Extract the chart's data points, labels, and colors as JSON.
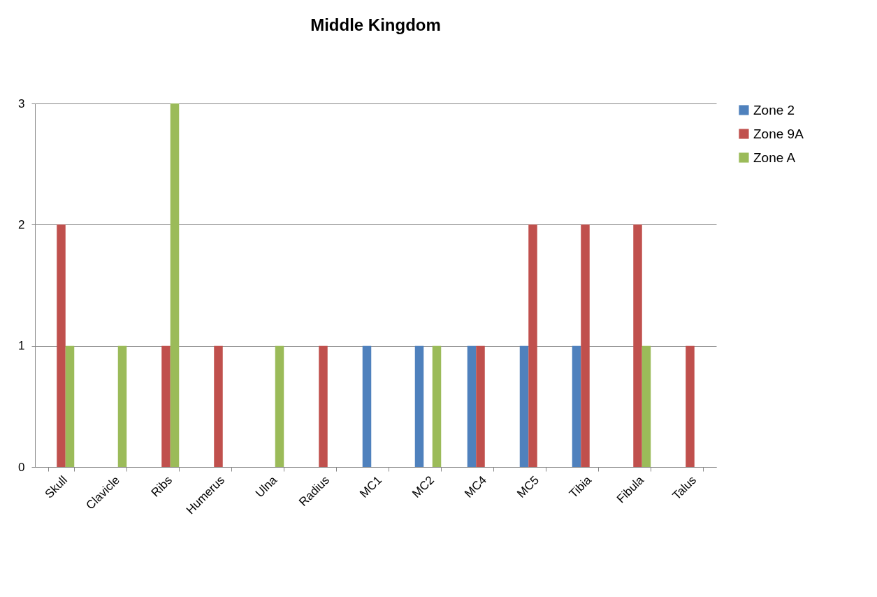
{
  "chart_data": {
    "type": "bar",
    "title": "Middle Kingdom",
    "categories": [
      "Skull",
      "Clavicle",
      "Ribs",
      "Humerus",
      "Ulna",
      "Radius",
      "MC1",
      "MC2",
      "MC4",
      "MC5",
      "Tibia",
      "Fibula",
      "Talus"
    ],
    "series": [
      {
        "name": "Zone 2",
        "color": "#4f81bd",
        "values": [
          0,
          0,
          0,
          0,
          0,
          0,
          1,
          1,
          1,
          1,
          1,
          0,
          0
        ]
      },
      {
        "name": "Zone 9A",
        "color": "#c0504d",
        "values": [
          2,
          0,
          1,
          1,
          0,
          1,
          0,
          0,
          1,
          2,
          2,
          2,
          1
        ]
      },
      {
        "name": "Zone A",
        "color": "#9bbb59",
        "values": [
          1,
          1,
          3,
          0,
          1,
          0,
          0,
          1,
          0,
          0,
          0,
          1,
          0
        ]
      }
    ],
    "ylim": [
      0,
      3
    ],
    "yticks": [
      0,
      1,
      2,
      3
    ],
    "grid": "y",
    "legend": "right"
  }
}
